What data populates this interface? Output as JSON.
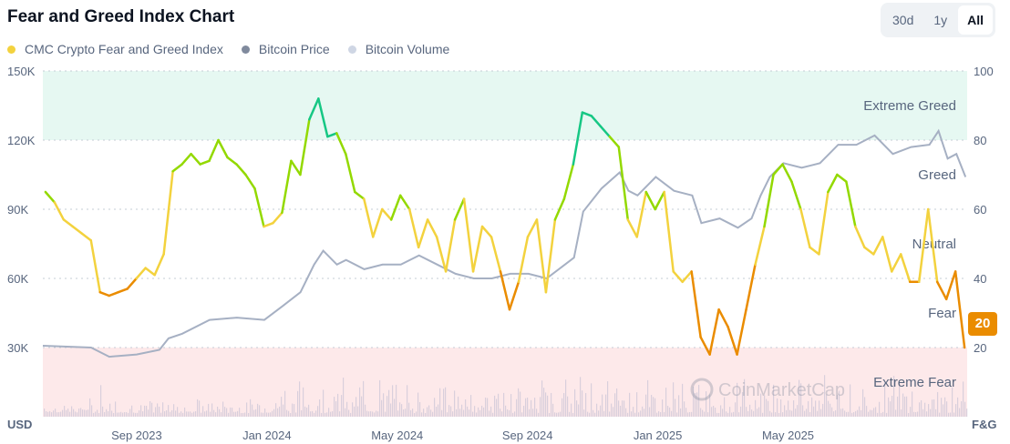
{
  "header": {
    "title": "Fear and Greed Index Chart"
  },
  "range_buttons": [
    {
      "label": "30d"
    },
    {
      "label": "1y"
    },
    {
      "label": "All",
      "active": true
    }
  ],
  "legend": [
    {
      "label": "CMC Crypto Fear and Greed Index",
      "color": "#f3d23e"
    },
    {
      "label": "Bitcoin Price",
      "color": "#808a9d"
    },
    {
      "label": "Bitcoin Volume",
      "color": "#cfd6e4"
    }
  ],
  "watermark": "CoinMarketCap",
  "current_badge": "20",
  "chart_data": {
    "type": "line",
    "title": "Fear and Greed Index Chart",
    "left_axis": {
      "unit_label": "USD",
      "ticks": [
        "30K",
        "60K",
        "90K",
        "120K",
        "150K"
      ],
      "range": [
        0,
        150000
      ]
    },
    "right_axis": {
      "unit_label": "F&G",
      "ticks": [
        "20",
        "40",
        "60",
        "80",
        "100"
      ],
      "range": [
        0,
        100
      ]
    },
    "x_ticks": [
      {
        "label": "Sep 2023",
        "month": 8
      },
      {
        "label": "Jan 2024",
        "month": 12
      },
      {
        "label": "May 2024",
        "month": 16
      },
      {
        "label": "Sep 2024",
        "month": 20
      },
      {
        "label": "Jan 2025",
        "month": 24
      },
      {
        "label": "May 2025",
        "month": 28
      }
    ],
    "x_range_months_since_2023_01": [
      5.12,
      33.5
    ],
    "zones": [
      {
        "label": "Extreme Greed",
        "from": 80,
        "to": 100,
        "label_at": 90,
        "color": "#e6f8f2"
      },
      {
        "label": "Greed",
        "label_at": 70
      },
      {
        "label": "Neutral",
        "label_at": 50
      },
      {
        "label": "Fear",
        "label_at": 30
      },
      {
        "label": "Extreme Fear",
        "from": 0,
        "to": 20,
        "label_at": 10,
        "color": "#fde9ea"
      }
    ],
    "fear_greed": {
      "name": "CMC Crypto Fear and Greed Index",
      "month_start": 5.2,
      "month_end": 33.42,
      "values": [
        65,
        62,
        57,
        55,
        53,
        51,
        36,
        35,
        36,
        37,
        40,
        43,
        41,
        47,
        71,
        73,
        76,
        73,
        74,
        80,
        75,
        73,
        70,
        66,
        55,
        56,
        59,
        74,
        70,
        86,
        92,
        81,
        82,
        76,
        65,
        63,
        52,
        60,
        57,
        64,
        60,
        49,
        57,
        52,
        42,
        57,
        63,
        42,
        55,
        52,
        42,
        31,
        39,
        52,
        57,
        36,
        57,
        63,
        73,
        88,
        87,
        84,
        81,
        78,
        57,
        52,
        65,
        60,
        65,
        42,
        39,
        42,
        23,
        18,
        31,
        26,
        18,
        31,
        44,
        55,
        70,
        73,
        68,
        60,
        49,
        47,
        65,
        70,
        68,
        55,
        49,
        47,
        52,
        42,
        47,
        39,
        39,
        60,
        39,
        34,
        42,
        20
      ]
    },
    "bitcoin_price": {
      "name": "Bitcoin Price",
      "points": [
        [
          5.12,
          30800
        ],
        [
          6.6,
          30000
        ],
        [
          7.16,
          26000
        ],
        [
          8,
          27000
        ],
        [
          8.7,
          29000
        ],
        [
          8.98,
          34000
        ],
        [
          9.4,
          36000
        ],
        [
          10.24,
          42000
        ],
        [
          11.08,
          43000
        ],
        [
          11.92,
          42000
        ],
        [
          12.48,
          48000
        ],
        [
          13.03,
          54000
        ],
        [
          13.45,
          66000
        ],
        [
          13.73,
          72000
        ],
        [
          14.15,
          66000
        ],
        [
          14.43,
          68000
        ],
        [
          14.99,
          64000
        ],
        [
          15.55,
          66000
        ],
        [
          16.11,
          66000
        ],
        [
          16.67,
          70000
        ],
        [
          17.23,
          66000
        ],
        [
          17.79,
          62000
        ],
        [
          18.35,
          60000
        ],
        [
          18.91,
          60000
        ],
        [
          19.47,
          62000
        ],
        [
          20.03,
          62000
        ],
        [
          20.59,
          60000
        ],
        [
          21.15,
          66000
        ],
        [
          21.43,
          69000
        ],
        [
          21.71,
          89000
        ],
        [
          22.27,
          99000
        ],
        [
          22.83,
          106000
        ],
        [
          23.1,
          98000
        ],
        [
          23.38,
          96000
        ],
        [
          23.94,
          104000
        ],
        [
          24.5,
          98000
        ],
        [
          25.06,
          96000
        ],
        [
          25.34,
          84000
        ],
        [
          25.9,
          86000
        ],
        [
          26.46,
          82000
        ],
        [
          26.88,
          86000
        ],
        [
          27.16,
          96000
        ],
        [
          27.44,
          104000
        ],
        [
          27.86,
          110000
        ],
        [
          28.42,
          108000
        ],
        [
          28.98,
          110000
        ],
        [
          29.54,
          118000
        ],
        [
          30.1,
          118000
        ],
        [
          30.66,
          122000
        ],
        [
          31.22,
          114000
        ],
        [
          31.78,
          117000
        ],
        [
          32.34,
          118000
        ],
        [
          32.62,
          124000
        ],
        [
          32.9,
          112000
        ],
        [
          33.17,
          114000
        ],
        [
          33.45,
          104000
        ]
      ]
    },
    "bitcoin_volume": {
      "name": "Bitcoin Volume"
    },
    "fg_colors": {
      "extreme_greed": "#16c784",
      "greed": "#93d900",
      "neutral": "#f3d23e",
      "fear": "#ea8c00",
      "extreme_fear": "#ea3943"
    }
  }
}
